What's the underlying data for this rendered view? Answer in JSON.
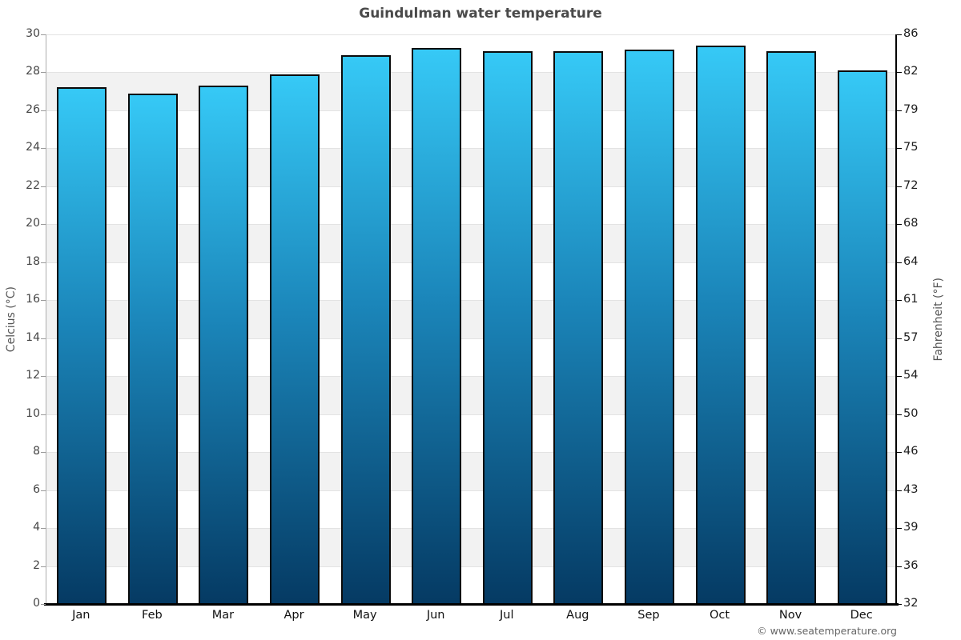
{
  "title": "Guindulman water temperature",
  "footer": {
    "copyright": "© www.seatemperature.org"
  },
  "chart_data": {
    "type": "bar",
    "title": "Guindulman water temperature",
    "categories": [
      "Jan",
      "Feb",
      "Mar",
      "Apr",
      "May",
      "Jun",
      "Jul",
      "Aug",
      "Sep",
      "Oct",
      "Nov",
      "Dec"
    ],
    "values": [
      27.2,
      26.9,
      27.3,
      27.9,
      28.9,
      29.3,
      29.1,
      29.1,
      29.2,
      29.4,
      29.1,
      28.1
    ],
    "unit": "°C",
    "xlabel": "",
    "ylabel_left": "Celcius (°C)",
    "ylabel_right": "Fahrenheit (°F)",
    "ylim": [
      0,
      30
    ],
    "ytick_step": 2,
    "yticks_celsius": [
      0,
      2,
      4,
      6,
      8,
      10,
      12,
      14,
      16,
      18,
      20,
      22,
      24,
      26,
      28,
      30
    ],
    "yticks_fahrenheit": [
      "32",
      "36",
      "39",
      "43",
      "46",
      "50",
      "54",
      "57",
      "61",
      "64",
      "68",
      "72",
      "75",
      "79",
      "82",
      "86"
    ],
    "legend": "none",
    "grid": "alternating-horizontal-bands",
    "colors": {
      "bar_gradient_top": "#36c9f6",
      "bar_gradient_mid": "#1b86ba",
      "bar_gradient_bottom": "#053a63",
      "bar_border": "#0b0b0b",
      "band_white": "#ffffff",
      "band_gray": "#f2f2f2",
      "gridline": "#e3e3e3",
      "title_text": "#4a4a4a",
      "tick_text_left": "#454545",
      "tick_text_right": "#1d1d1d",
      "footer_text": "#666666"
    }
  }
}
